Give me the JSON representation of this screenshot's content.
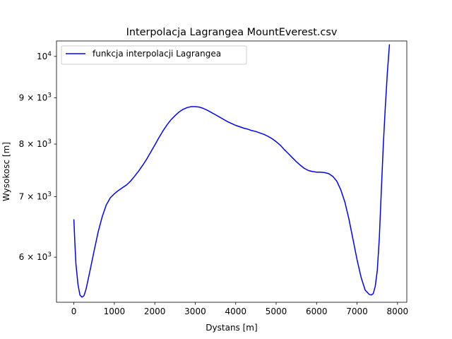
{
  "chart_data": {
    "type": "line",
    "title": "Interpolacja Lagrangea MountEverest.csv",
    "xlabel": "Dystans [m]",
    "ylabel": "Wysokosc [m]",
    "xlim": [
      -430,
      8230
    ],
    "ylim": [
      5350,
      10400
    ],
    "yscale": "log",
    "grid": false,
    "legend_position": "top-left",
    "x_ticks": [
      0,
      1000,
      2000,
      3000,
      4000,
      5000,
      6000,
      7000,
      8000
    ],
    "x_tick_labels": [
      "0",
      "1000",
      "2000",
      "3000",
      "4000",
      "5000",
      "6000",
      "7000",
      "8000"
    ],
    "y_ticks": [
      {
        "value": 6000,
        "base": "6 × 10",
        "exp": "3"
      },
      {
        "value": 7000,
        "base": "7 × 10",
        "exp": "3"
      },
      {
        "value": 8000,
        "base": "8 × 10",
        "exp": "3"
      },
      {
        "value": 9000,
        "base": "9 × 10",
        "exp": "3"
      },
      {
        "value": 10000,
        "base": "10",
        "exp": "4"
      }
    ],
    "series": [
      {
        "name": "funkcja interpolacji Lagrangea",
        "color": "#0000ff",
        "x": [
          0,
          25,
          50,
          100,
          150,
          200,
          250,
          300,
          400,
          500,
          600,
          700,
          800,
          900,
          1000,
          1100,
          1200,
          1300,
          1400,
          1500,
          1600,
          1700,
          1800,
          1900,
          2000,
          2100,
          2200,
          2300,
          2400,
          2500,
          2600,
          2700,
          2800,
          2900,
          3000,
          3100,
          3200,
          3300,
          3400,
          3500,
          3600,
          3700,
          3800,
          3900,
          4000,
          4100,
          4200,
          4300,
          4400,
          4500,
          4600,
          4700,
          4800,
          4900,
          5000,
          5100,
          5200,
          5300,
          5400,
          5500,
          5600,
          5700,
          5800,
          5900,
          6000,
          6100,
          6200,
          6300,
          6400,
          6500,
          6600,
          6700,
          6800,
          6900,
          7000,
          7100,
          7200,
          7300,
          7350,
          7400,
          7450,
          7500,
          7550,
          7600,
          7650,
          7700,
          7750,
          7800
        ],
        "y": [
          6600,
          6200,
          5900,
          5600,
          5450,
          5420,
          5440,
          5530,
          5800,
          6100,
          6400,
          6650,
          6850,
          6980,
          7050,
          7110,
          7160,
          7210,
          7280,
          7370,
          7470,
          7580,
          7700,
          7840,
          7980,
          8130,
          8270,
          8400,
          8510,
          8600,
          8680,
          8740,
          8780,
          8800,
          8800,
          8790,
          8760,
          8720,
          8670,
          8620,
          8570,
          8520,
          8470,
          8430,
          8390,
          8360,
          8330,
          8310,
          8280,
          8260,
          8230,
          8200,
          8160,
          8110,
          8050,
          7980,
          7890,
          7810,
          7730,
          7650,
          7580,
          7520,
          7480,
          7460,
          7450,
          7450,
          7440,
          7420,
          7370,
          7280,
          7120,
          6900,
          6610,
          6280,
          5960,
          5700,
          5520,
          5460,
          5450,
          5470,
          5570,
          5800,
          6300,
          7100,
          8000,
          8800,
          9600,
          10300
        ]
      }
    ]
  }
}
